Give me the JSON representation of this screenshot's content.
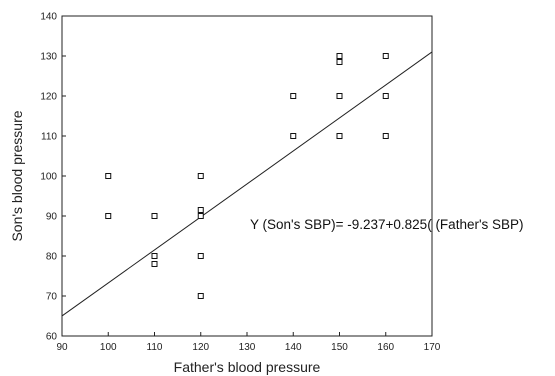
{
  "chart_data": {
    "type": "scatter",
    "title": "",
    "xlabel": "Father's blood pressure",
    "ylabel": "Son's blood pressure",
    "xlim": [
      90,
      170
    ],
    "ylim": [
      60,
      140
    ],
    "x_ticks": [
      90,
      100,
      110,
      120,
      130,
      140,
      150,
      160,
      170
    ],
    "y_ticks": [
      60,
      70,
      80,
      90,
      100,
      110,
      120,
      130,
      140
    ],
    "grid": false,
    "legend": "none",
    "marker": "hollow-square",
    "series": [
      {
        "points": [
          [
            100,
            100
          ],
          [
            100,
            90
          ],
          [
            110,
            90
          ],
          [
            110,
            80
          ],
          [
            110,
            78
          ],
          [
            120,
            100
          ],
          [
            120,
            91.5
          ],
          [
            120,
            90
          ],
          [
            120,
            80
          ],
          [
            120,
            70
          ],
          [
            140,
            120
          ],
          [
            140,
            110
          ],
          [
            150,
            130
          ],
          [
            150,
            128.5
          ],
          [
            150,
            120
          ],
          [
            150,
            110
          ],
          [
            160,
            130
          ],
          [
            160,
            120
          ],
          [
            160,
            110
          ]
        ]
      }
    ],
    "regression_line": {
      "intercept": -9.237,
      "slope": 0.825
    },
    "annotation": "Y (Son's SBP)= -9.237+0.825( (Father's SBP)"
  }
}
